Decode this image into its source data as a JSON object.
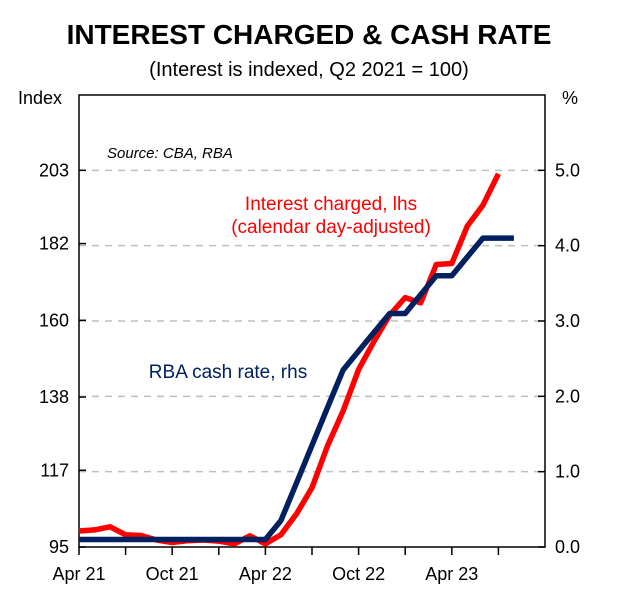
{
  "chart_data": {
    "type": "line",
    "title": "INTEREST CHARGED & CASH RATE",
    "subtitle": "(Interest is indexed, Q2 2021 = 100)",
    "source": "Source: CBA, RBA",
    "left_axis": {
      "unit_label": "Index",
      "ylim": [
        95,
        224.6
      ],
      "ticks": [
        95,
        117,
        138,
        160,
        182,
        203
      ],
      "tick_labels": [
        "95",
        "117",
        "138",
        "160",
        "182",
        "203"
      ]
    },
    "right_axis": {
      "unit_label": "%",
      "ylim": [
        0,
        6
      ],
      "ticks": [
        0,
        1,
        2,
        3,
        4,
        5
      ],
      "tick_labels": [
        "0.0",
        "1.0",
        "2.0",
        "3.0",
        "4.0",
        "5.0"
      ]
    },
    "x_axis": {
      "range": [
        0,
        30
      ],
      "ticks": [
        0,
        6,
        12,
        18,
        24
      ],
      "tick_labels": [
        "Apr 21",
        "Oct 21",
        "Apr 22",
        "Oct 22",
        "Apr 23"
      ],
      "minor_ticks": [
        3,
        9,
        15,
        21,
        27
      ]
    },
    "grid": "horizontal dashed",
    "series": [
      {
        "name": "Interest charged, lhs",
        "label_line2": "(calendar day-adjusted)",
        "axis": "left",
        "color": "#ff0000",
        "x": [
          0,
          1,
          2,
          3,
          4,
          5,
          6,
          7,
          8,
          9,
          10,
          11,
          12,
          13,
          14,
          15,
          16,
          17,
          18,
          19,
          20,
          21,
          22,
          23,
          24,
          25,
          26,
          27,
          28
        ],
        "y": [
          99.6,
          99.9,
          100.8,
          98.5,
          98.3,
          97.0,
          96.3,
          96.8,
          97.0,
          96.7,
          95.9,
          98.2,
          95.9,
          98.5,
          104.5,
          112.0,
          124.0,
          134.0,
          145.9,
          154.0,
          161.5,
          166.5,
          165.0,
          176.0,
          176.3,
          187.0,
          193.0,
          202.0,
          null
        ]
      },
      {
        "name": "RBA cash rate, rhs",
        "axis": "right",
        "color": "#002060",
        "x": [
          0,
          1,
          2,
          3,
          4,
          5,
          6,
          7,
          8,
          9,
          10,
          11,
          12,
          13,
          14,
          15,
          16,
          17,
          18,
          19,
          20,
          21,
          22,
          23,
          24,
          25,
          26,
          27,
          28
        ],
        "y": [
          0.1,
          0.1,
          0.1,
          0.1,
          0.1,
          0.1,
          0.1,
          0.1,
          0.1,
          0.1,
          0.1,
          0.1,
          0.1,
          0.35,
          0.85,
          1.35,
          1.85,
          2.35,
          2.6,
          2.85,
          3.1,
          3.1,
          3.35,
          3.6,
          3.6,
          3.85,
          4.1,
          4.1,
          4.1
        ]
      }
    ],
    "annotations": {
      "red_line1": "Interest charged, lhs",
      "red_line2": "(calendar day-adjusted)",
      "blue": "RBA cash rate, rhs"
    }
  },
  "colors": {
    "red": "#ff0000",
    "navy": "#002060",
    "grid": "#bfbfbf"
  }
}
